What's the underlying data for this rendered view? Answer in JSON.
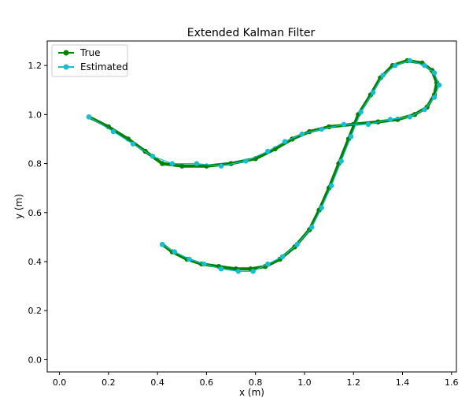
{
  "chart_data": {
    "type": "line",
    "title": "Extended Kalman Filter",
    "xlabel": "x (m)",
    "ylabel": "y (m)",
    "xlim": [
      -0.05,
      1.62
    ],
    "ylim": [
      -0.05,
      1.3
    ],
    "xticks": [
      0.0,
      0.2,
      0.4,
      0.6,
      0.8,
      1.0,
      1.2,
      1.4,
      1.6
    ],
    "yticks": [
      0.0,
      0.2,
      0.4,
      0.6,
      0.8,
      1.0,
      1.2
    ],
    "xtick_labels": [
      "0.0",
      "0.2",
      "0.4",
      "0.6",
      "0.8",
      "1.0",
      "1.2",
      "1.4",
      "1.6"
    ],
    "ytick_labels": [
      "0.0",
      "0.2",
      "0.4",
      "0.6",
      "0.8",
      "1.0",
      "1.2"
    ],
    "grid": false,
    "legend_position": "top-left",
    "series": [
      {
        "name": "True",
        "color": "#008000",
        "marker": "circle",
        "points": [
          [
            0.12,
            0.99
          ],
          [
            0.2,
            0.95
          ],
          [
            0.28,
            0.9
          ],
          [
            0.35,
            0.85
          ],
          [
            0.42,
            0.8
          ],
          [
            0.5,
            0.79
          ],
          [
            0.6,
            0.79
          ],
          [
            0.7,
            0.8
          ],
          [
            0.8,
            0.82
          ],
          [
            0.88,
            0.86
          ],
          [
            0.95,
            0.9
          ],
          [
            1.02,
            0.93
          ],
          [
            1.1,
            0.95
          ],
          [
            1.2,
            0.96
          ],
          [
            1.3,
            0.97
          ],
          [
            1.38,
            0.98
          ],
          [
            1.45,
            1.0
          ],
          [
            1.5,
            1.03
          ],
          [
            1.53,
            1.08
          ],
          [
            1.54,
            1.13
          ],
          [
            1.52,
            1.18
          ],
          [
            1.48,
            1.21
          ],
          [
            1.42,
            1.22
          ],
          [
            1.36,
            1.2
          ],
          [
            1.31,
            1.15
          ],
          [
            1.27,
            1.08
          ],
          [
            1.22,
            1.0
          ],
          [
            1.18,
            0.9
          ],
          [
            1.14,
            0.8
          ],
          [
            1.1,
            0.7
          ],
          [
            1.06,
            0.61
          ],
          [
            1.02,
            0.53
          ],
          [
            0.96,
            0.46
          ],
          [
            0.9,
            0.41
          ],
          [
            0.84,
            0.38
          ],
          [
            0.78,
            0.37
          ],
          [
            0.72,
            0.37
          ],
          [
            0.65,
            0.38
          ],
          [
            0.58,
            0.39
          ],
          [
            0.52,
            0.41
          ],
          [
            0.46,
            0.44
          ],
          [
            0.42,
            0.47
          ]
        ]
      },
      {
        "name": "Estimated",
        "color": "#17becf",
        "marker": "circle",
        "points": [
          [
            0.12,
            0.99
          ],
          [
            0.22,
            0.93
          ],
          [
            0.3,
            0.88
          ],
          [
            0.38,
            0.83
          ],
          [
            0.46,
            0.8
          ],
          [
            0.56,
            0.8
          ],
          [
            0.66,
            0.79
          ],
          [
            0.76,
            0.81
          ],
          [
            0.85,
            0.85
          ],
          [
            0.92,
            0.89
          ],
          [
            0.99,
            0.92
          ],
          [
            1.07,
            0.94
          ],
          [
            1.16,
            0.96
          ],
          [
            1.26,
            0.96
          ],
          [
            1.35,
            0.98
          ],
          [
            1.43,
            0.99
          ],
          [
            1.49,
            1.02
          ],
          [
            1.53,
            1.07
          ],
          [
            1.55,
            1.12
          ],
          [
            1.53,
            1.17
          ],
          [
            1.49,
            1.2
          ],
          [
            1.43,
            1.22
          ],
          [
            1.37,
            1.2
          ],
          [
            1.32,
            1.16
          ],
          [
            1.28,
            1.09
          ],
          [
            1.23,
            1.01
          ],
          [
            1.19,
            0.91
          ],
          [
            1.15,
            0.81
          ],
          [
            1.11,
            0.71
          ],
          [
            1.07,
            0.62
          ],
          [
            1.03,
            0.54
          ],
          [
            0.97,
            0.47
          ],
          [
            0.91,
            0.42
          ],
          [
            0.85,
            0.39
          ],
          [
            0.79,
            0.36
          ],
          [
            0.73,
            0.36
          ],
          [
            0.66,
            0.37
          ],
          [
            0.59,
            0.39
          ],
          [
            0.53,
            0.41
          ],
          [
            0.47,
            0.44
          ],
          [
            0.42,
            0.47
          ]
        ]
      }
    ]
  }
}
